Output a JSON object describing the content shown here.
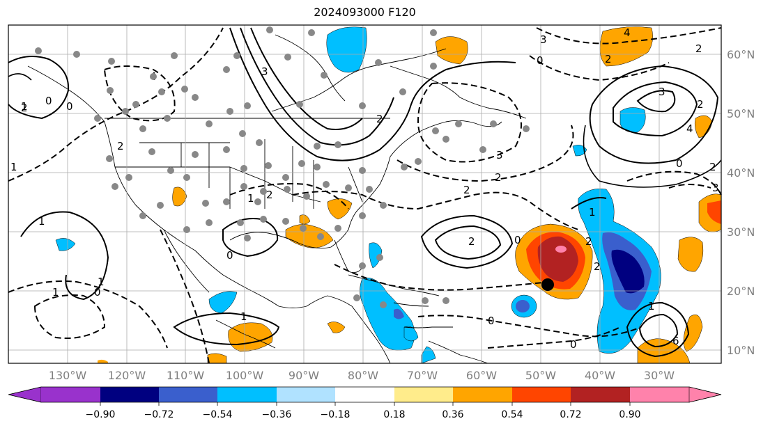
{
  "title": "2024093000 F120",
  "map": {
    "projection": "plate-carree",
    "lon_range": [
      -140,
      -16
    ],
    "lat_range": [
      7,
      65
    ],
    "lon_ticks": [
      "130°W",
      "120°W",
      "110°W",
      "100°W",
      "90°W",
      "80°W",
      "70°W",
      "60°W",
      "50°W",
      "40°W",
      "30°W"
    ],
    "lat_ticks": [
      "60°N",
      "50°N",
      "40°N",
      "30°N",
      "20°N",
      "10°N"
    ],
    "gridlines": true,
    "contour_labels": [
      "1",
      "2",
      "0",
      "1",
      "0",
      "2",
      "4",
      "3",
      "3",
      "2",
      "1",
      "2",
      "3",
      "2",
      "2",
      "1",
      "0",
      "1",
      "0",
      "1",
      "2",
      "2",
      "0",
      "0",
      "2",
      "1",
      "3",
      "6",
      "4",
      "3",
      "2",
      "1",
      "0",
      "2",
      "4",
      "2",
      "0",
      "0",
      "1",
      "2"
    ],
    "marker": {
      "lat": 21,
      "lon": -50,
      "color": "#000000"
    }
  },
  "colorbar": {
    "tick_labels": [
      "−0.90",
      "−0.72",
      "−0.54",
      "−0.36",
      "−0.18",
      "0.18",
      "0.36",
      "0.54",
      "0.72",
      "0.90"
    ],
    "colors": [
      "#9932cc",
      "#000080",
      "#3a5fcd",
      "#00bfff",
      "#b0e2ff",
      "#ffffff",
      "#ffec8b",
      "#ffa500",
      "#ff4500",
      "#b22222",
      "#ff82ab"
    ]
  }
}
